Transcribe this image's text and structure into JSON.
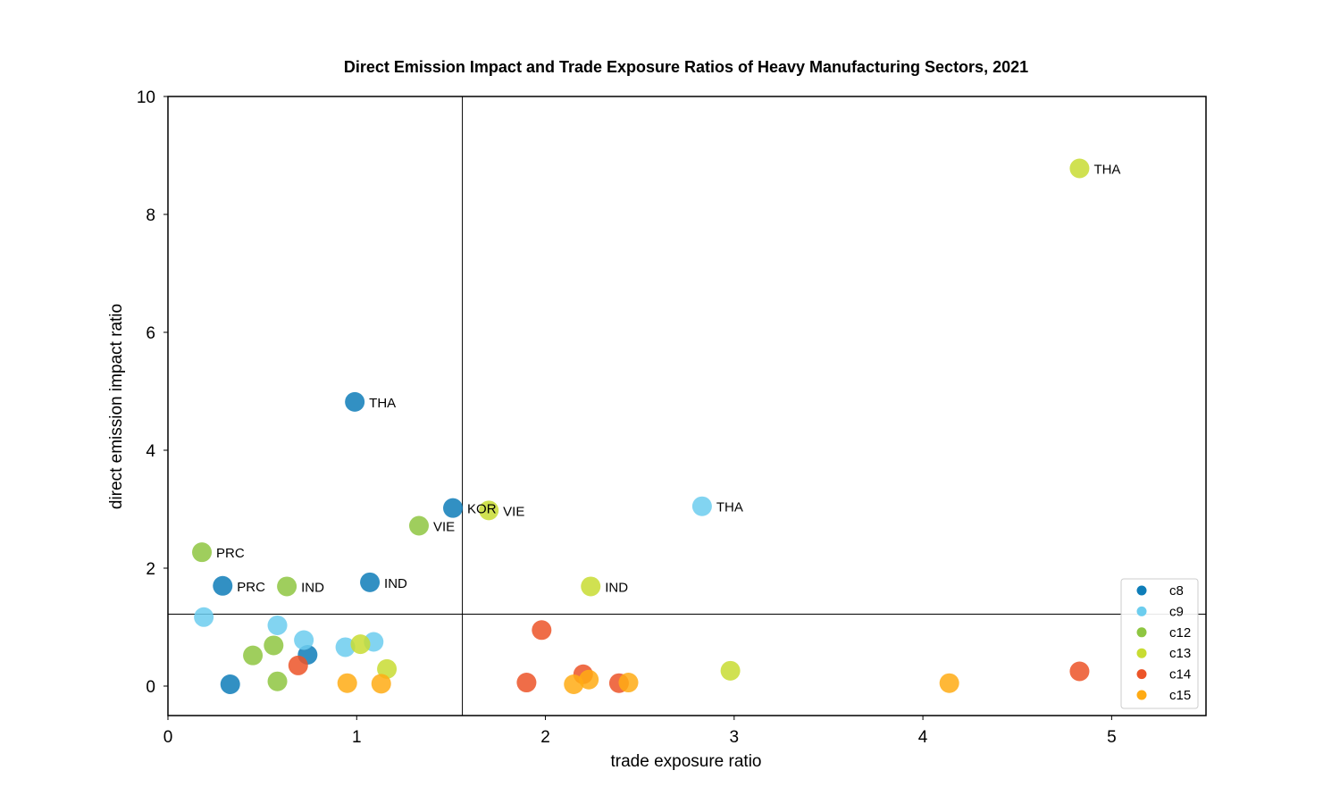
{
  "chart_data": {
    "type": "scatter",
    "title": "Direct Emission Impact and Trade Exposure Ratios of Heavy Manufacturing Sectors, 2021",
    "xlabel": "trade exposure ratio",
    "ylabel": "direct emission impact ratio",
    "xlim": [
      0,
      5.5
    ],
    "ylim": [
      -0.5,
      10
    ],
    "xticks": [
      0,
      1,
      2,
      3,
      4,
      5
    ],
    "yticks": [
      0,
      2,
      4,
      6,
      8,
      10
    ],
    "grid": false,
    "legend_position": "bottom-right",
    "reference_lines": {
      "x": 1.56,
      "y": 1.22
    },
    "series": [
      {
        "name": "c8",
        "color": "#0e7db8",
        "points": [
          {
            "x": 0.33,
            "y": 0.03,
            "label": ""
          },
          {
            "x": 0.29,
            "y": 1.7,
            "label": "PRC"
          },
          {
            "x": 0.74,
            "y": 0.53,
            "label": ""
          },
          {
            "x": 0.99,
            "y": 4.82,
            "label": "THA"
          },
          {
            "x": 1.07,
            "y": 1.76,
            "label": "IND"
          },
          {
            "x": 1.51,
            "y": 3.02,
            "label": "KOR"
          }
        ]
      },
      {
        "name": "c9",
        "color": "#6ccdee",
        "points": [
          {
            "x": 0.19,
            "y": 1.17,
            "label": ""
          },
          {
            "x": 0.58,
            "y": 1.03,
            "label": ""
          },
          {
            "x": 0.72,
            "y": 0.78,
            "label": ""
          },
          {
            "x": 0.94,
            "y": 0.66,
            "label": ""
          },
          {
            "x": 1.09,
            "y": 0.75,
            "label": ""
          },
          {
            "x": 2.83,
            "y": 3.05,
            "label": "THA"
          }
        ]
      },
      {
        "name": "c12",
        "color": "#8ec641",
        "points": [
          {
            "x": 0.18,
            "y": 2.27,
            "label": "PRC"
          },
          {
            "x": 0.45,
            "y": 0.52,
            "label": ""
          },
          {
            "x": 0.56,
            "y": 0.69,
            "label": ""
          },
          {
            "x": 0.58,
            "y": 0.08,
            "label": ""
          },
          {
            "x": 0.63,
            "y": 1.69,
            "label": "IND"
          },
          {
            "x": 1.33,
            "y": 2.72,
            "label": "VIE"
          }
        ]
      },
      {
        "name": "c13",
        "color": "#c8dc32",
        "points": [
          {
            "x": 1.02,
            "y": 0.71,
            "label": ""
          },
          {
            "x": 1.16,
            "y": 0.29,
            "label": ""
          },
          {
            "x": 1.7,
            "y": 2.98,
            "label": "VIE"
          },
          {
            "x": 2.24,
            "y": 1.69,
            "label": "IND"
          },
          {
            "x": 2.98,
            "y": 0.26,
            "label": ""
          },
          {
            "x": 4.83,
            "y": 8.78,
            "label": "THA"
          }
        ]
      },
      {
        "name": "c14",
        "color": "#ec5428",
        "points": [
          {
            "x": 0.69,
            "y": 0.35,
            "label": ""
          },
          {
            "x": 1.9,
            "y": 0.06,
            "label": ""
          },
          {
            "x": 1.98,
            "y": 0.95,
            "label": ""
          },
          {
            "x": 2.2,
            "y": 0.2,
            "label": ""
          },
          {
            "x": 2.39,
            "y": 0.05,
            "label": ""
          },
          {
            "x": 4.83,
            "y": 0.25,
            "label": ""
          }
        ]
      },
      {
        "name": "c15",
        "color": "#ffab14",
        "points": [
          {
            "x": 0.95,
            "y": 0.05,
            "label": ""
          },
          {
            "x": 1.13,
            "y": 0.04,
            "label": ""
          },
          {
            "x": 2.15,
            "y": 0.03,
            "label": ""
          },
          {
            "x": 2.23,
            "y": 0.11,
            "label": ""
          },
          {
            "x": 2.44,
            "y": 0.06,
            "label": ""
          },
          {
            "x": 4.14,
            "y": 0.05,
            "label": ""
          }
        ]
      }
    ]
  }
}
